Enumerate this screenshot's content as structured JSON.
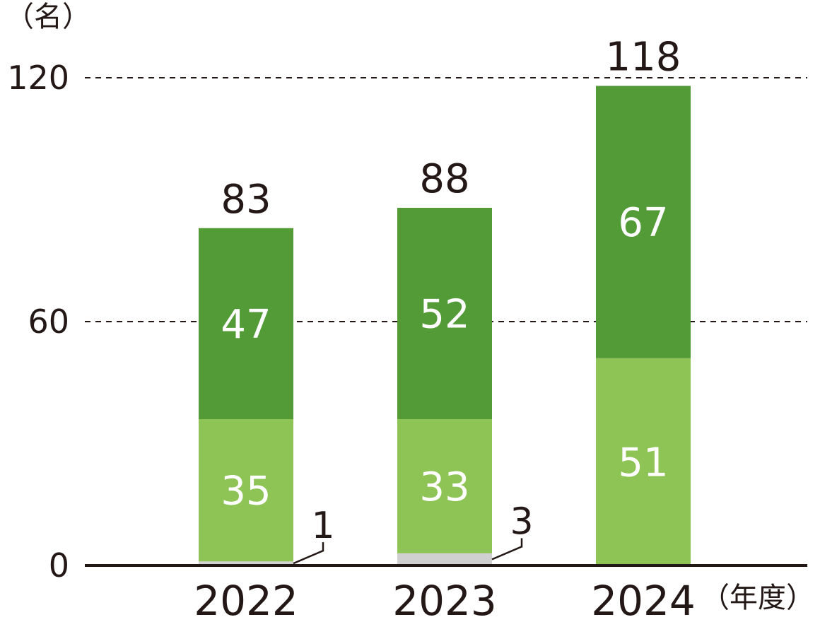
{
  "chart_data": {
    "type": "bar",
    "stacked": true,
    "y_unit": "（名）",
    "x_unit": "（年度）",
    "categories": [
      "2022",
      "2023",
      "2024"
    ],
    "series": [
      {
        "values": [
          1,
          3,
          0
        ],
        "color": "#d0d0d0"
      },
      {
        "values": [
          35,
          33,
          51
        ],
        "color": "#8dc455"
      },
      {
        "values": [
          47,
          52,
          67
        ],
        "color": "#529b37"
      }
    ],
    "totals": [
      "83",
      "88",
      "118"
    ],
    "bottom_labels": [
      "1",
      "3",
      ""
    ],
    "yticks": [
      0,
      60,
      120
    ],
    "ylim": [
      0,
      120
    ],
    "grid": "dashed at 60 and 120"
  }
}
